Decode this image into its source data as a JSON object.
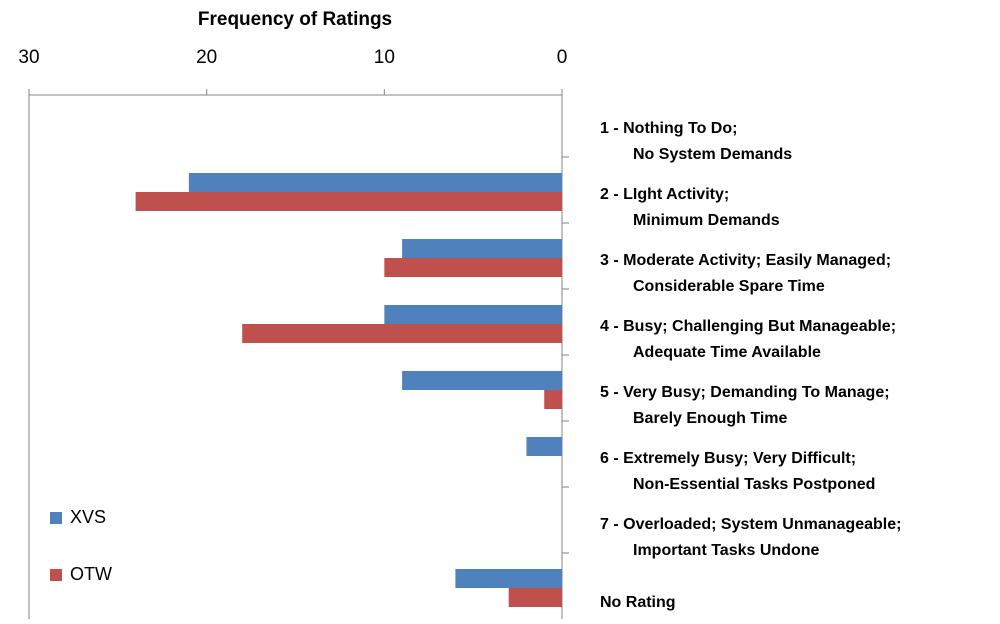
{
  "chart_data": {
    "type": "barh",
    "title": "Frequency of Ratings",
    "categories": [
      [
        "1 - Nothing To Do;",
        "No System Demands"
      ],
      [
        "2 - LIght Activity;",
        "Minimum Demands"
      ],
      [
        "3 - Moderate Activity; Easily Managed;",
        "Considerable Spare Time"
      ],
      [
        "4 - Busy; Challenging But Manageable;",
        "Adequate Time Available"
      ],
      [
        "5 - Very Busy; Demanding To Manage;",
        "Barely Enough Time"
      ],
      [
        "6 - Extremely Busy; Very Difficult;",
        "Non-Essential Tasks Postponed"
      ],
      [
        "7 - Overloaded; System Unmanageable;",
        "Important Tasks Undone"
      ],
      [
        "No Rating"
      ]
    ],
    "series": [
      {
        "name": "XVS",
        "color": "#4f81bd",
        "values": [
          0,
          21,
          9,
          10,
          9,
          2,
          0,
          6
        ]
      },
      {
        "name": "OTW",
        "color": "#c0504d",
        "values": [
          0,
          24,
          10,
          18,
          1,
          0,
          0,
          3
        ]
      }
    ],
    "xlim": [
      30,
      0
    ],
    "xticks": [
      30,
      20,
      10,
      0
    ],
    "x_axis_position": "top",
    "legend": "lower left"
  }
}
